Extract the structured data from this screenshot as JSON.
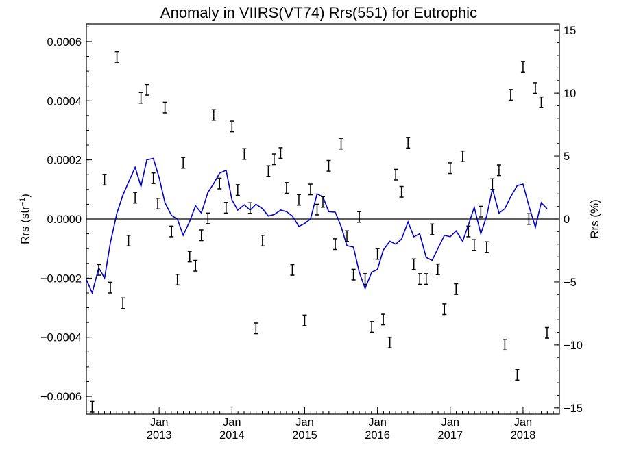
{
  "chart_data": {
    "type": "scatter",
    "title": "Anomaly in VIIRS(VT74) Rrs(551) for Eutrophic",
    "ylabel": "Rrs (str",
    "ylabel_sup": "−1",
    "ylabel_close": ")",
    "y2label": "Rrs (%)",
    "ylim": [
      -0.00066,
      0.00066
    ],
    "y2lim": [
      -15.5,
      15.5
    ],
    "xlim": [
      2012.0,
      2018.5
    ],
    "yticks": [
      {
        "v": 0.0006,
        "label": "0.0006"
      },
      {
        "v": 0.0004,
        "label": "0.0004"
      },
      {
        "v": 0.0002,
        "label": "0.0002"
      },
      {
        "v": 0.0,
        "label": "0.0000"
      },
      {
        "v": -0.0002,
        "label": "−0.0002"
      },
      {
        "v": -0.0004,
        "label": "−0.0004"
      },
      {
        "v": -0.0006,
        "label": "−0.0006"
      }
    ],
    "y2ticks": [
      {
        "v": 15,
        "label": "15"
      },
      {
        "v": 10,
        "label": "10"
      },
      {
        "v": 5,
        "label": "5"
      },
      {
        "v": 0,
        "label": "0"
      },
      {
        "v": -5,
        "label": "−5"
      },
      {
        "v": -10,
        "label": "−10"
      },
      {
        "v": -15,
        "label": "−15"
      }
    ],
    "xticks": [
      {
        "v": 2013.0,
        "month": "Jan",
        "year": "2013"
      },
      {
        "v": 2014.0,
        "month": "Jan",
        "year": "2014"
      },
      {
        "v": 2015.0,
        "month": "Jan",
        "year": "2015"
      },
      {
        "v": 2016.0,
        "month": "Jan",
        "year": "2016"
      },
      {
        "v": 2017.0,
        "month": "Jan",
        "year": "2017"
      },
      {
        "v": 2018.0,
        "month": "Jan",
        "year": "2018"
      }
    ],
    "series": [
      {
        "type": "errorbar",
        "color": "#000000",
        "err": 1.8e-05,
        "points": [
          [
            2012.08,
            -0.000635
          ],
          [
            2012.17,
            -0.000172
          ],
          [
            2012.25,
            0.000133
          ],
          [
            2012.33,
            -0.000232
          ],
          [
            2012.42,
            0.000548
          ],
          [
            2012.5,
            -0.000285
          ],
          [
            2012.58,
            -7.3e-05
          ],
          [
            2012.67,
            7.2e-05
          ],
          [
            2012.75,
            0.00041
          ],
          [
            2012.83,
            0.000437
          ],
          [
            2012.92,
            0.000138
          ],
          [
            2012.98,
            5.2e-05
          ],
          [
            2013.08,
            0.000377
          ],
          [
            2013.17,
            -4.2e-05
          ],
          [
            2013.25,
            -0.000205
          ],
          [
            2013.33,
            0.00019
          ],
          [
            2013.42,
            -0.000127
          ],
          [
            2013.5,
            -0.000158
          ],
          [
            2013.58,
            -5.5e-05
          ],
          [
            2013.67,
            2e-06
          ],
          [
            2013.75,
            0.000352
          ],
          [
            2013.83,
            0.00012
          ],
          [
            2013.92,
            3.8e-05
          ],
          [
            2014.0,
            0.000313
          ],
          [
            2014.08,
            9.8e-05
          ],
          [
            2014.17,
            0.00022
          ],
          [
            2014.25,
            3.7e-05
          ],
          [
            2014.33,
            -0.00037
          ],
          [
            2014.42,
            -7.3e-05
          ],
          [
            2014.5,
            0.000162
          ],
          [
            2014.58,
            0.000202
          ],
          [
            2014.67,
            0.000223
          ],
          [
            2014.75,
            0.000105
          ],
          [
            2014.83,
            -0.000172
          ],
          [
            2014.92,
            6.5e-05
          ],
          [
            2015.0,
            -0.000343
          ],
          [
            2015.08,
            0.0001
          ],
          [
            2015.17,
            3.2e-05
          ],
          [
            2015.25,
            5.8e-05
          ],
          [
            2015.33,
            0.00018
          ],
          [
            2015.42,
            -8.5e-05
          ],
          [
            2015.5,
            0.000255
          ],
          [
            2015.58,
            -5.8e-05
          ],
          [
            2015.67,
            -0.000188
          ],
          [
            2015.75,
            7e-06
          ],
          [
            2015.83,
            -0.000203
          ],
          [
            2015.92,
            -0.000365
          ],
          [
            2016.0,
            -0.000118
          ],
          [
            2016.08,
            -0.00034
          ],
          [
            2016.17,
            -0.000418
          ],
          [
            2016.25,
            0.00015
          ],
          [
            2016.33,
            9.2e-05
          ],
          [
            2016.42,
            0.000258
          ],
          [
            2016.5,
            -0.000153
          ],
          [
            2016.58,
            -0.000203
          ],
          [
            2016.67,
            -0.000203
          ],
          [
            2016.75,
            -3.5e-05
          ],
          [
            2016.83,
            -0.00017
          ],
          [
            2016.92,
            -0.000305
          ],
          [
            2017.0,
            0.000172
          ],
          [
            2017.08,
            -0.000237
          ],
          [
            2017.17,
            0.000212
          ],
          [
            2017.25,
            -4.2e-05
          ],
          [
            2017.33,
            -8.8e-05
          ],
          [
            2017.42,
            2.5e-05
          ],
          [
            2017.5,
            -9.5e-05
          ],
          [
            2017.58,
            0.000118
          ],
          [
            2017.67,
            0.000165
          ],
          [
            2017.75,
            -0.000425
          ],
          [
            2017.83,
            0.00042
          ],
          [
            2017.92,
            -0.000527
          ],
          [
            2018.0,
            0.000515
          ],
          [
            2018.08,
            0.0
          ],
          [
            2018.17,
            0.000443
          ],
          [
            2018.25,
            0.000395
          ],
          [
            2018.33,
            -0.000385
          ]
        ]
      },
      {
        "type": "line",
        "color": "#0000cc",
        "points": [
          [
            2012.0,
            -0.000205
          ],
          [
            2012.08,
            -0.00025
          ],
          [
            2012.17,
            -0.000165
          ],
          [
            2012.25,
            -0.0002
          ],
          [
            2012.33,
            -8e-05
          ],
          [
            2012.42,
            2e-05
          ],
          [
            2012.5,
            8e-05
          ],
          [
            2012.58,
            0.000125
          ],
          [
            2012.67,
            0.000175
          ],
          [
            2012.75,
            0.00011
          ],
          [
            2012.83,
            0.0002
          ],
          [
            2012.92,
            0.000205
          ],
          [
            2013.0,
            0.00014
          ],
          [
            2013.08,
            5.5e-05
          ],
          [
            2013.17,
            1.2e-05
          ],
          [
            2013.25,
            0.0
          ],
          [
            2013.33,
            -5.5e-05
          ],
          [
            2013.42,
            -8e-06
          ],
          [
            2013.5,
            4.5e-05
          ],
          [
            2013.58,
            2e-05
          ],
          [
            2013.67,
            9e-05
          ],
          [
            2013.75,
            0.00012
          ],
          [
            2013.83,
            0.000155
          ],
          [
            2013.92,
            0.000165
          ],
          [
            2014.0,
            6.5e-05
          ],
          [
            2014.08,
            3e-05
          ],
          [
            2014.17,
            4.8e-05
          ],
          [
            2014.25,
            3e-05
          ],
          [
            2014.33,
            5e-05
          ],
          [
            2014.42,
            3.5e-05
          ],
          [
            2014.5,
            1e-05
          ],
          [
            2014.58,
            1.5e-05
          ],
          [
            2014.67,
            3e-05
          ],
          [
            2014.75,
            2.5e-05
          ],
          [
            2014.83,
            1e-05
          ],
          [
            2014.92,
            -2.5e-05
          ],
          [
            2015.0,
            -1.5e-05
          ],
          [
            2015.08,
            0.0
          ],
          [
            2015.17,
            8.5e-05
          ],
          [
            2015.25,
            7.5e-05
          ],
          [
            2015.33,
            2.5e-05
          ],
          [
            2015.42,
            2.3e-05
          ],
          [
            2015.5,
            -2.5e-05
          ],
          [
            2015.58,
            -9e-05
          ],
          [
            2015.67,
            -9.5e-05
          ],
          [
            2015.75,
            -0.00018
          ],
          [
            2015.83,
            -0.000235
          ],
          [
            2015.92,
            -0.00018
          ],
          [
            2016.0,
            -0.00017
          ],
          [
            2016.08,
            -0.000105
          ],
          [
            2016.17,
            -7.5e-05
          ],
          [
            2016.25,
            -8.5e-05
          ],
          [
            2016.33,
            -6.8e-05
          ],
          [
            2016.42,
            -1e-05
          ],
          [
            2016.5,
            -6e-05
          ],
          [
            2016.58,
            -5e-05
          ],
          [
            2016.67,
            -0.00013
          ],
          [
            2016.75,
            -0.00014
          ],
          [
            2016.83,
            -0.0001
          ],
          [
            2016.92,
            -5.5e-05
          ],
          [
            2017.0,
            -6e-05
          ],
          [
            2017.08,
            -4e-05
          ],
          [
            2017.17,
            -7.5e-05
          ],
          [
            2017.25,
            -2e-05
          ],
          [
            2017.33,
            4e-05
          ],
          [
            2017.42,
            -5e-05
          ],
          [
            2017.5,
            1e-05
          ],
          [
            2017.58,
            0.000102
          ],
          [
            2017.67,
            2e-05
          ],
          [
            2017.75,
            3.5e-05
          ],
          [
            2017.83,
            7.5e-05
          ],
          [
            2017.92,
            0.000113
          ],
          [
            2018.0,
            0.000118
          ],
          [
            2018.08,
            4.5e-05
          ],
          [
            2018.17,
            -2.8e-05
          ],
          [
            2018.25,
            5.5e-05
          ],
          [
            2018.33,
            3.5e-05
          ]
        ]
      }
    ],
    "hline": 0
  }
}
